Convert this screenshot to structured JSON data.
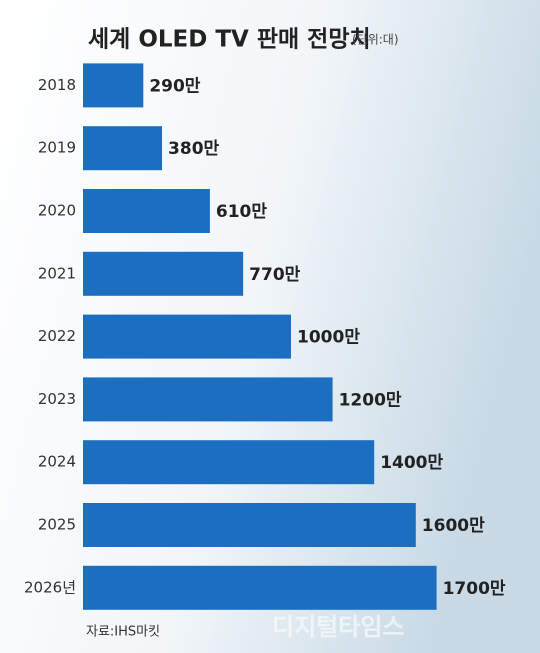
{
  "chart_data": {
    "type": "hbar",
    "title": "세계 OLED TV 판매 전망치",
    "subtitle": "(단위:대)",
    "categories": [
      "2018",
      "2019",
      "2020",
      "2021",
      "2022",
      "2023",
      "2024",
      "2025",
      "2026년"
    ],
    "values": [
      290,
      380,
      610,
      770,
      1000,
      1200,
      1400,
      1600,
      1700
    ],
    "value_labels": [
      "290만",
      "380만",
      "610만",
      "770만",
      "1000만",
      "1200만",
      "1400만",
      "1600만",
      "1700만"
    ],
    "color": "#1c6fc0",
    "xlim": [
      0,
      2000
    ],
    "source": "자료:IHS마킷",
    "watermark": "디지털타임스"
  }
}
